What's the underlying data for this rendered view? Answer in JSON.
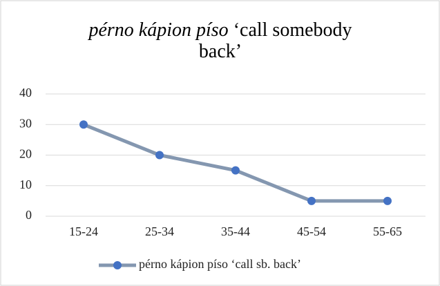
{
  "chart_data": {
    "type": "line",
    "title": [
      "pérno kápion píso",
      "‘call somebody back’"
    ],
    "categories": [
      "15-24",
      "25-34",
      "35-44",
      "45-54",
      "55-65"
    ],
    "series": [
      {
        "name": "pérno kápion píso ‘call sb. back’",
        "color": "#8497b0",
        "marker_color": "#4472c4",
        "values": [
          30,
          20,
          15,
          5,
          5
        ]
      }
    ],
    "ylim": [
      0,
      40
    ],
    "yticks": [
      0,
      10,
      20,
      30,
      40
    ],
    "grid": true,
    "legend": "bottom"
  }
}
